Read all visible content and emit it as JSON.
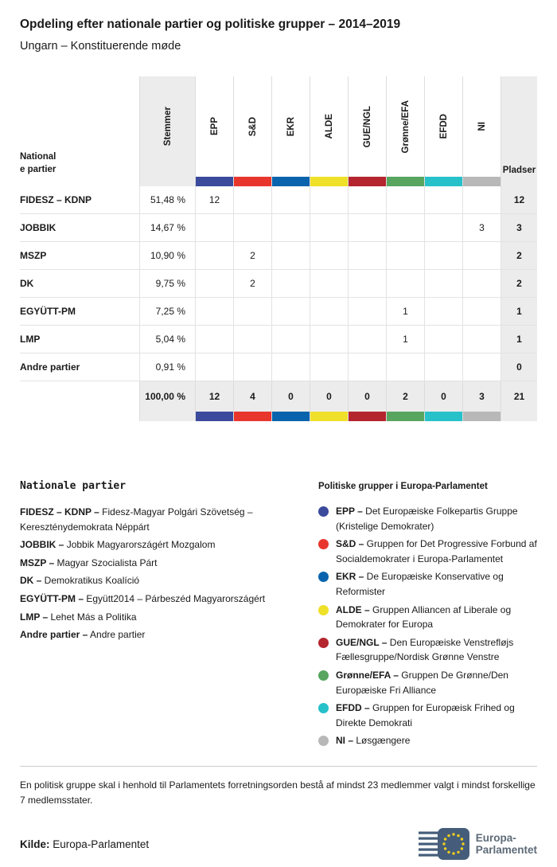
{
  "page": {
    "title": "Opdeling efter nationale partier og politiske grupper – 2014–2019",
    "subtitle": "Ungarn – Konstituerende møde"
  },
  "table": {
    "col_party_line1": "National",
    "col_party_line2": "e partier",
    "col_votes": "Stemmer",
    "col_seats": "Pladser",
    "groups": [
      {
        "label": "EPP",
        "color": "#3b4a9c"
      },
      {
        "label": "S&D",
        "color": "#e8362d"
      },
      {
        "label": "EKR",
        "color": "#0a64ad"
      },
      {
        "label": "ALDE",
        "color": "#efe029"
      },
      {
        "label": "GUE/NGL",
        "color": "#b4252e"
      },
      {
        "label": "Grønne/EFA",
        "color": "#57a55f"
      },
      {
        "label": "EFDD",
        "color": "#27c1ca"
      },
      {
        "label": "NI",
        "color": "#b8b8b8"
      }
    ],
    "rows": [
      {
        "party": "FIDESZ – KDNP",
        "stemmer": "51,48 %",
        "seats": [
          "12",
          "",
          "",
          "",
          "",
          "",
          "",
          ""
        ],
        "pladser": "12"
      },
      {
        "party": "JOBBIK",
        "stemmer": "14,67 %",
        "seats": [
          "",
          "",
          "",
          "",
          "",
          "",
          "",
          "3"
        ],
        "pladser": "3"
      },
      {
        "party": "MSZP",
        "stemmer": "10,90 %",
        "seats": [
          "",
          "2",
          "",
          "",
          "",
          "",
          "",
          ""
        ],
        "pladser": "2"
      },
      {
        "party": "DK",
        "stemmer": "9,75 %",
        "seats": [
          "",
          "2",
          "",
          "",
          "",
          "",
          "",
          ""
        ],
        "pladser": "2"
      },
      {
        "party": "EGYÜTT-PM",
        "stemmer": "7,25 %",
        "seats": [
          "",
          "",
          "",
          "",
          "",
          "1",
          "",
          ""
        ],
        "pladser": "1"
      },
      {
        "party": "LMP",
        "stemmer": "5,04 %",
        "seats": [
          "",
          "",
          "",
          "",
          "",
          "1",
          "",
          ""
        ],
        "pladser": "1"
      },
      {
        "party": "Andre partier",
        "stemmer": "0,91 %",
        "seats": [
          "",
          "",
          "",
          "",
          "",
          "",
          "",
          ""
        ],
        "pladser": "0"
      }
    ],
    "total": {
      "stemmer": "100,00 %",
      "seats": [
        "12",
        "4",
        "0",
        "0",
        "0",
        "2",
        "0",
        "3"
      ],
      "pladser": "21"
    }
  },
  "legend_parties": {
    "title": "Nationale partier",
    "items": [
      {
        "abbr": "FIDESZ – KDNP –",
        "desc": "Fidesz-Magyar Polgári Szövetség – Kereszténydemokrata Néppárt"
      },
      {
        "abbr": "JOBBIK –",
        "desc": "Jobbik Magyarországért Mozgalom"
      },
      {
        "abbr": "MSZP –",
        "desc": "Magyar Szocialista Párt"
      },
      {
        "abbr": "DK –",
        "desc": "Demokratikus Koalíció"
      },
      {
        "abbr": "EGYÜTT-PM –",
        "desc": "Együtt2014 – Párbeszéd Magyarországért"
      },
      {
        "abbr": "LMP –",
        "desc": "Lehet Más a Politika"
      },
      {
        "abbr": "Andre partier –",
        "desc": "Andre partier"
      }
    ]
  },
  "legend_groups": {
    "title": "Politiske grupper i Europa-Parlamentet",
    "items": [
      {
        "abbr": "EPP –",
        "desc": "Det Europæiske Folkepartis Gruppe (Kristelige Demokrater)",
        "color": "#3b4a9c"
      },
      {
        "abbr": "S&D –",
        "desc": "Gruppen for Det Progressive Forbund af Socialdemokrater i Europa-Parlamentet",
        "color": "#e8362d"
      },
      {
        "abbr": "EKR –",
        "desc": "De Europæiske Konservative og Reformister",
        "color": "#0a64ad"
      },
      {
        "abbr": "ALDE –",
        "desc": "Gruppen Alliancen af Liberale og Demokrater for Europa",
        "color": "#efe029"
      },
      {
        "abbr": "GUE/NGL –",
        "desc": "Den Europæiske Venstrefløjs Fællesgruppe/Nordisk Grønne Venstre",
        "color": "#b4252e"
      },
      {
        "abbr": "Grønne/EFA –",
        "desc": "Gruppen De Grønne/Den Europæiske Fri Alliance",
        "color": "#57a55f"
      },
      {
        "abbr": "EFDD –",
        "desc": "Gruppen for Europæisk Frihed og Direkte Demokrati",
        "color": "#27c1ca"
      },
      {
        "abbr": "NI –",
        "desc": "Løsgængere",
        "color": "#b8b8b8"
      }
    ]
  },
  "footer": {
    "note": "En politisk gruppe skal i henhold til Parlamentets forretningsorden bestå af mindst 23 medlemmer valgt i mindst forskellige 7 medlemsstater.",
    "source_label": "Kilde:",
    "source_text": "Europa-Parlamentet",
    "logo_line1": "Europa-",
    "logo_line2": "Parlamentet"
  },
  "chart_data": {
    "type": "table",
    "title": "Opdeling efter nationale partier og politiske grupper – 2014–2019",
    "subtitle": "Ungarn – Konstituerende møde",
    "columns": [
      "Nationale partier",
      "Stemmer",
      "EPP",
      "S&D",
      "EKR",
      "ALDE",
      "GUE/NGL",
      "Grønne/EFA",
      "EFDD",
      "NI",
      "Pladser"
    ],
    "rows": [
      [
        "FIDESZ – KDNP",
        51.48,
        12,
        null,
        null,
        null,
        null,
        null,
        null,
        null,
        12
      ],
      [
        "JOBBIK",
        14.67,
        null,
        null,
        null,
        null,
        null,
        null,
        null,
        3,
        3
      ],
      [
        "MSZP",
        10.9,
        null,
        2,
        null,
        null,
        null,
        null,
        null,
        null,
        2
      ],
      [
        "DK",
        9.75,
        null,
        2,
        null,
        null,
        null,
        null,
        null,
        null,
        2
      ],
      [
        "EGYÜTT-PM",
        7.25,
        null,
        null,
        null,
        null,
        null,
        1,
        null,
        null,
        1
      ],
      [
        "LMP",
        5.04,
        null,
        null,
        null,
        null,
        null,
        1,
        null,
        null,
        1
      ],
      [
        "Andre partier",
        0.91,
        null,
        null,
        null,
        null,
        null,
        null,
        null,
        null,
        0
      ]
    ],
    "total": [
      "",
      100.0,
      12,
      4,
      0,
      0,
      0,
      2,
      0,
      3,
      21
    ],
    "group_colors": {
      "EPP": "#3b4a9c",
      "S&D": "#e8362d",
      "EKR": "#0a64ad",
      "ALDE": "#efe029",
      "GUE/NGL": "#b4252e",
      "Grønne/EFA": "#57a55f",
      "EFDD": "#27c1ca",
      "NI": "#b8b8b8"
    }
  }
}
